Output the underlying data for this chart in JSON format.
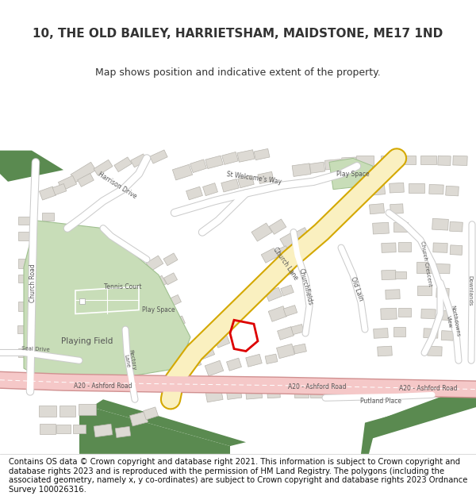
{
  "title_line1": "10, THE OLD BAILEY, HARRIETSHAM, MAIDSTONE, ME17 1ND",
  "title_line2": "Map shows position and indicative extent of the property.",
  "footer": "Contains OS data © Crown copyright and database right 2021. This information is subject to Crown copyright and database rights 2023 and is reproduced with the permission of HM Land Registry. The polygons (including the associated geometry, namely x, y co-ordinates) are subject to Crown copyright and database rights 2023 Ordnance Survey 100026316.",
  "map_bg": "#f2f0ed",
  "road_yellow_fill": "#faf0c0",
  "road_yellow_edge": "#d4a800",
  "road_pink_fill": "#f5c8c8",
  "road_pink_edge": "#d09090",
  "green_field": "#c8ddb8",
  "green_dark": "#5a8a50",
  "building_fill": "#dddad4",
  "building_edge": "#b8b5ae",
  "text_color": "#333333",
  "road_text_color": "#555555",
  "title_fontsize": 11,
  "subtitle_fontsize": 9,
  "footer_fontsize": 7.2,
  "highlight_color": "#dd0000",
  "white": "#ffffff",
  "light_gray_road": "#e8e8e8",
  "gray_road_edge": "#cccccc"
}
